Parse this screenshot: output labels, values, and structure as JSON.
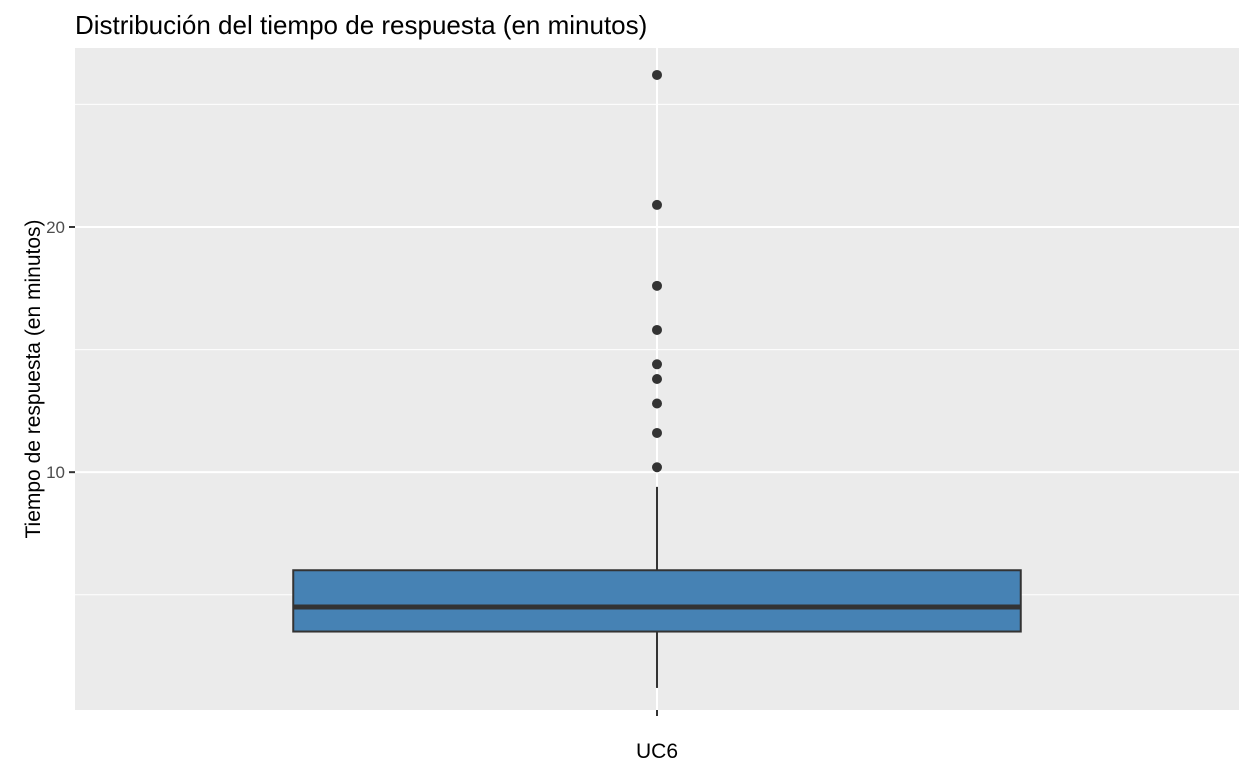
{
  "chart_data": {
    "type": "boxplot",
    "title": "Distribución del tiempo de respuesta (en minutos)",
    "xlabel": "",
    "ylabel": "Tiempo de respuesta (en minutos)",
    "categories": [
      "UC6"
    ],
    "boxes": [
      {
        "category": "UC6",
        "whisker_low": 1.2,
        "q1": 3.5,
        "median": 4.5,
        "q3": 6.0,
        "whisker_high": 9.4,
        "outliers": [
          10.2,
          11.6,
          12.8,
          13.8,
          14.4,
          15.8,
          17.6,
          20.9,
          26.2
        ]
      }
    ],
    "ylim": [
      0.3,
      27.3
    ],
    "yticks": [
      10,
      20
    ],
    "ytick_labels": [
      "10",
      "20"
    ],
    "minor_gridlines": [
      5,
      15,
      25
    ],
    "grid": true,
    "legend": "none",
    "colors": {
      "panel_background": "#EBEBEB",
      "grid": "#FFFFFF",
      "box_fill": "#4682B4",
      "box_stroke": "#333333",
      "outlier": "#333333",
      "axis_text": "#4D4D4D",
      "title_text": "#000000"
    }
  }
}
